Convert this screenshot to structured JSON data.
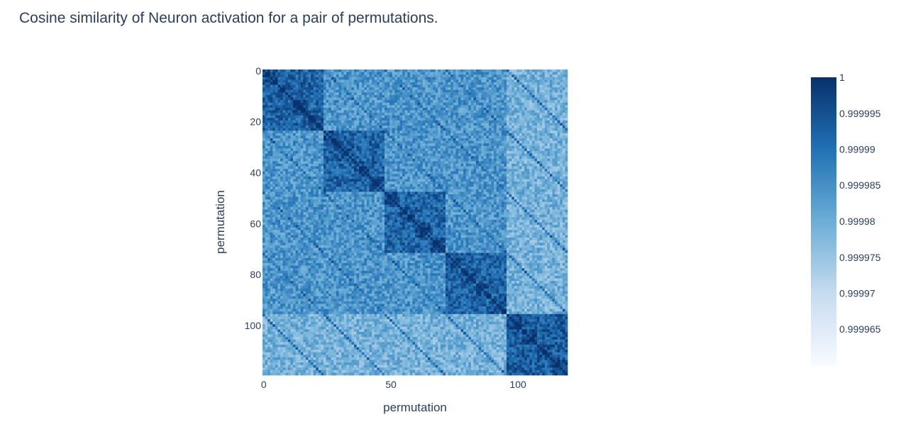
{
  "chart_data": {
    "type": "heatmap",
    "title": "Cosine similarity of Neuron activation for a pair of permutations.",
    "xlabel": "permutation",
    "ylabel": "permutation",
    "x_range": [
      0,
      119
    ],
    "y_range": [
      0,
      119
    ],
    "y_reversed": true,
    "x_ticks": [
      0,
      50,
      100
    ],
    "x_tick_labels": [
      "0",
      "50",
      "100"
    ],
    "y_ticks": [
      0,
      20,
      40,
      60,
      80,
      100
    ],
    "y_tick_labels": [
      "0",
      "20",
      "40",
      "60",
      "80",
      "100"
    ],
    "matrix_size": 120,
    "block_size": 24,
    "diagonal_value": 1,
    "z_min": 0.99996,
    "z_max": 1,
    "colorscale": [
      "#f7fbff",
      "#c6dbef",
      "#6baed6",
      "#2171b5",
      "#08306b"
    ],
    "colorbar": {
      "ticks": [
        1,
        0.999995,
        0.99999,
        0.999985,
        0.99998,
        0.999975,
        0.99997,
        0.999965
      ],
      "tick_labels": [
        "1",
        "0.999995",
        "0.99999",
        "0.999985",
        "0.99998",
        "0.999975",
        "0.99997",
        "0.999965"
      ]
    }
  }
}
